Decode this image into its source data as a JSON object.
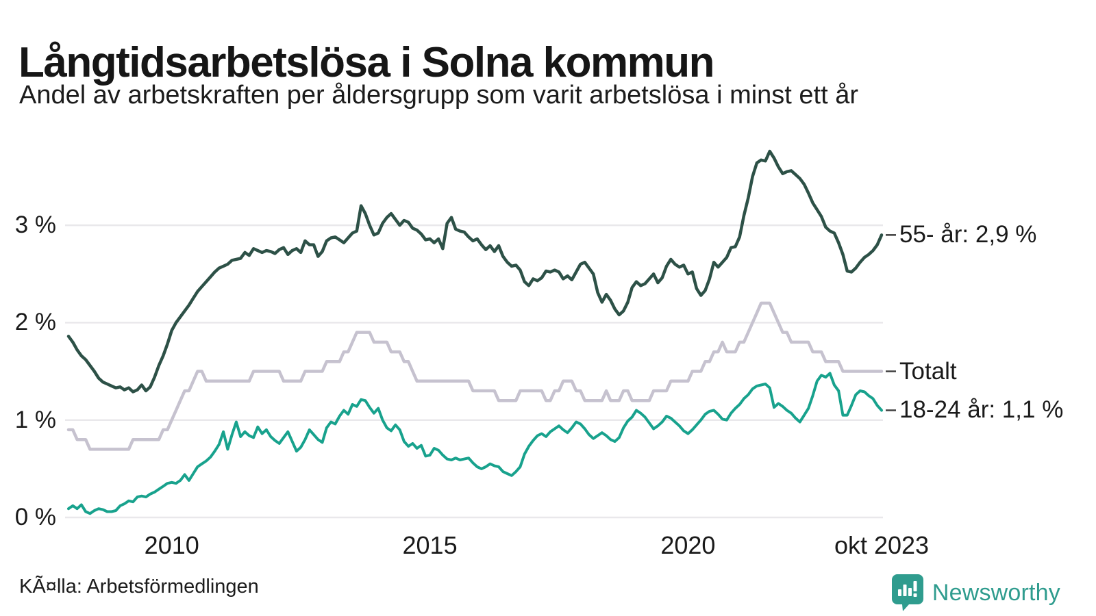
{
  "header": {
    "title": "Långtidsarbetslösa i Solna kommun",
    "subtitle": "Andel av arbetskraften per åldersgrupp som varit arbetslösa i minst ett år"
  },
  "footer": {
    "source": "KÃ¤lla: Arbetsförmedlingen",
    "brand": "Newsworthy"
  },
  "colors": {
    "series_55": "#2d5147",
    "series_total": "#c6c2cf",
    "series_18_24": "#18a28d",
    "gridline": "#e9e8eb",
    "connector": "#3f3f3f",
    "brand_teal": "#2f9c8e"
  },
  "chart_data": {
    "type": "line",
    "title": "Långtidsarbetslösa i Solna kommun",
    "subtitle": "Andel av arbetskraften per åldersgrupp som varit arbetslösa i minst ett år",
    "unit": "%",
    "frequency": "monthly",
    "x_start": "2008-01",
    "x_end": "2023-10",
    "x_domain": [
      2008.0,
      2023.75
    ],
    "ylim": [
      0,
      3.95
    ],
    "grid": "horizontal",
    "legend_position": "right-end-labels",
    "yticks": [
      {
        "value": 0,
        "label": "0 %"
      },
      {
        "value": 1,
        "label": "1 %"
      },
      {
        "value": 2,
        "label": "2 %"
      },
      {
        "value": 3,
        "label": "3 %"
      }
    ],
    "xticks": [
      {
        "t": 2010.0,
        "label": "2010"
      },
      {
        "t": 2015.0,
        "label": "2015"
      },
      {
        "t": 2020.0,
        "label": "2020"
      },
      {
        "t": 2023.75,
        "label": "okt 2023"
      }
    ],
    "series": [
      {
        "name": "Totalt",
        "end_label": "Totalt",
        "last_value": 1.5,
        "color": "#c6c2cf",
        "width": 4.5,
        "values": [
          0.9,
          0.9,
          0.8,
          0.8,
          0.8,
          0.7,
          0.7,
          0.7,
          0.7,
          0.7,
          0.7,
          0.7,
          0.7,
          0.7,
          0.7,
          0.8,
          0.8,
          0.8,
          0.8,
          0.8,
          0.8,
          0.8,
          0.9,
          0.9,
          1.0,
          1.1,
          1.2,
          1.3,
          1.3,
          1.4,
          1.5,
          1.5,
          1.4,
          1.4,
          1.4,
          1.4,
          1.4,
          1.4,
          1.4,
          1.4,
          1.4,
          1.4,
          1.4,
          1.5,
          1.5,
          1.5,
          1.5,
          1.5,
          1.5,
          1.5,
          1.4,
          1.4,
          1.4,
          1.4,
          1.4,
          1.5,
          1.5,
          1.5,
          1.5,
          1.5,
          1.6,
          1.6,
          1.6,
          1.6,
          1.7,
          1.7,
          1.8,
          1.9,
          1.9,
          1.9,
          1.9,
          1.8,
          1.8,
          1.8,
          1.8,
          1.7,
          1.7,
          1.7,
          1.6,
          1.6,
          1.5,
          1.4,
          1.4,
          1.4,
          1.4,
          1.4,
          1.4,
          1.4,
          1.4,
          1.4,
          1.4,
          1.4,
          1.4,
          1.4,
          1.3,
          1.3,
          1.3,
          1.3,
          1.3,
          1.3,
          1.2,
          1.2,
          1.2,
          1.2,
          1.2,
          1.3,
          1.3,
          1.3,
          1.3,
          1.3,
          1.3,
          1.2,
          1.2,
          1.3,
          1.3,
          1.4,
          1.4,
          1.4,
          1.3,
          1.3,
          1.2,
          1.2,
          1.2,
          1.2,
          1.2,
          1.3,
          1.2,
          1.2,
          1.2,
          1.3,
          1.3,
          1.2,
          1.2,
          1.2,
          1.2,
          1.2,
          1.3,
          1.3,
          1.3,
          1.3,
          1.4,
          1.4,
          1.4,
          1.4,
          1.4,
          1.5,
          1.5,
          1.5,
          1.6,
          1.6,
          1.7,
          1.7,
          1.8,
          1.7,
          1.7,
          1.7,
          1.8,
          1.8,
          1.9,
          2.0,
          2.1,
          2.2,
          2.2,
          2.2,
          2.1,
          2.0,
          1.9,
          1.9,
          1.8,
          1.8,
          1.8,
          1.8,
          1.8,
          1.7,
          1.7,
          1.7,
          1.6,
          1.6,
          1.6,
          1.6,
          1.5,
          1.5,
          1.5,
          1.5,
          1.5,
          1.5,
          1.5,
          1.5,
          1.5,
          1.5
        ]
      },
      {
        "name": "18-24 år",
        "end_label": "18-24 år: 1,1 %",
        "last_value": 1.1,
        "color": "#18a28d",
        "width": 4,
        "values": [
          0.09,
          0.12,
          0.09,
          0.13,
          0.06,
          0.04,
          0.07,
          0.09,
          0.08,
          0.06,
          0.06,
          0.07,
          0.12,
          0.14,
          0.17,
          0.16,
          0.21,
          0.22,
          0.21,
          0.24,
          0.26,
          0.29,
          0.32,
          0.35,
          0.36,
          0.35,
          0.38,
          0.44,
          0.38,
          0.45,
          0.52,
          0.55,
          0.58,
          0.62,
          0.68,
          0.75,
          0.88,
          0.7,
          0.85,
          0.98,
          0.83,
          0.88,
          0.84,
          0.82,
          0.93,
          0.86,
          0.9,
          0.83,
          0.79,
          0.76,
          0.82,
          0.88,
          0.78,
          0.68,
          0.72,
          0.8,
          0.9,
          0.85,
          0.8,
          0.77,
          0.92,
          0.98,
          0.96,
          1.04,
          1.1,
          1.06,
          1.16,
          1.14,
          1.21,
          1.2,
          1.13,
          1.07,
          1.12,
          1.0,
          0.92,
          0.89,
          0.95,
          0.9,
          0.78,
          0.73,
          0.76,
          0.71,
          0.74,
          0.63,
          0.64,
          0.71,
          0.69,
          0.64,
          0.6,
          0.59,
          0.61,
          0.59,
          0.6,
          0.61,
          0.56,
          0.52,
          0.5,
          0.52,
          0.55,
          0.53,
          0.52,
          0.47,
          0.45,
          0.43,
          0.47,
          0.52,
          0.65,
          0.73,
          0.79,
          0.84,
          0.86,
          0.83,
          0.88,
          0.91,
          0.94,
          0.9,
          0.87,
          0.92,
          0.98,
          0.96,
          0.91,
          0.85,
          0.81,
          0.84,
          0.87,
          0.84,
          0.8,
          0.78,
          0.82,
          0.92,
          0.99,
          1.03,
          1.1,
          1.07,
          1.03,
          0.97,
          0.91,
          0.94,
          0.98,
          1.04,
          1.02,
          0.98,
          0.94,
          0.89,
          0.86,
          0.9,
          0.95,
          1.0,
          1.06,
          1.09,
          1.1,
          1.06,
          1.01,
          1.0,
          1.07,
          1.12,
          1.16,
          1.22,
          1.26,
          1.32,
          1.35,
          1.36,
          1.37,
          1.33,
          1.13,
          1.17,
          1.14,
          1.1,
          1.07,
          1.02,
          0.98,
          1.05,
          1.12,
          1.25,
          1.4,
          1.46,
          1.44,
          1.48,
          1.36,
          1.3,
          1.05,
          1.05,
          1.15,
          1.26,
          1.3,
          1.29,
          1.25,
          1.22,
          1.15,
          1.1
        ]
      },
      {
        "name": "55- år",
        "end_label": "55- år: 2,9 %",
        "last_value": 2.9,
        "color": "#2d5147",
        "width": 4.5,
        "values": [
          1.86,
          1.8,
          1.72,
          1.66,
          1.62,
          1.56,
          1.5,
          1.43,
          1.39,
          1.37,
          1.35,
          1.33,
          1.34,
          1.31,
          1.33,
          1.29,
          1.31,
          1.36,
          1.3,
          1.34,
          1.44,
          1.56,
          1.66,
          1.78,
          1.92,
          2.0,
          2.06,
          2.12,
          2.18,
          2.25,
          2.32,
          2.37,
          2.42,
          2.47,
          2.52,
          2.56,
          2.58,
          2.6,
          2.64,
          2.65,
          2.66,
          2.72,
          2.69,
          2.76,
          2.74,
          2.72,
          2.74,
          2.73,
          2.71,
          2.75,
          2.77,
          2.7,
          2.74,
          2.76,
          2.72,
          2.84,
          2.8,
          2.8,
          2.68,
          2.73,
          2.84,
          2.87,
          2.88,
          2.85,
          2.82,
          2.87,
          2.92,
          2.94,
          3.2,
          3.12,
          3.0,
          2.9,
          2.92,
          3.02,
          3.08,
          3.12,
          3.06,
          3.0,
          3.05,
          3.03,
          2.97,
          2.95,
          2.91,
          2.85,
          2.86,
          2.82,
          2.86,
          2.76,
          3.02,
          3.08,
          2.96,
          2.94,
          2.93,
          2.88,
          2.84,
          2.86,
          2.8,
          2.75,
          2.79,
          2.73,
          2.79,
          2.68,
          2.62,
          2.58,
          2.59,
          2.54,
          2.42,
          2.38,
          2.45,
          2.43,
          2.46,
          2.53,
          2.52,
          2.54,
          2.52,
          2.45,
          2.48,
          2.44,
          2.52,
          2.6,
          2.62,
          2.56,
          2.5,
          2.31,
          2.21,
          2.29,
          2.23,
          2.14,
          2.08,
          2.12,
          2.21,
          2.36,
          2.42,
          2.38,
          2.4,
          2.45,
          2.5,
          2.41,
          2.46,
          2.58,
          2.65,
          2.6,
          2.57,
          2.59,
          2.5,
          2.52,
          2.35,
          2.28,
          2.33,
          2.45,
          2.62,
          2.57,
          2.62,
          2.67,
          2.77,
          2.78,
          2.88,
          3.1,
          3.28,
          3.5,
          3.64,
          3.67,
          3.66,
          3.76,
          3.69,
          3.6,
          3.53,
          3.55,
          3.56,
          3.52,
          3.48,
          3.42,
          3.33,
          3.23,
          3.16,
          3.09,
          2.98,
          2.94,
          2.92,
          2.82,
          2.7,
          2.53,
          2.52,
          2.56,
          2.62,
          2.67,
          2.7,
          2.74,
          2.8,
          2.9
        ]
      }
    ]
  }
}
